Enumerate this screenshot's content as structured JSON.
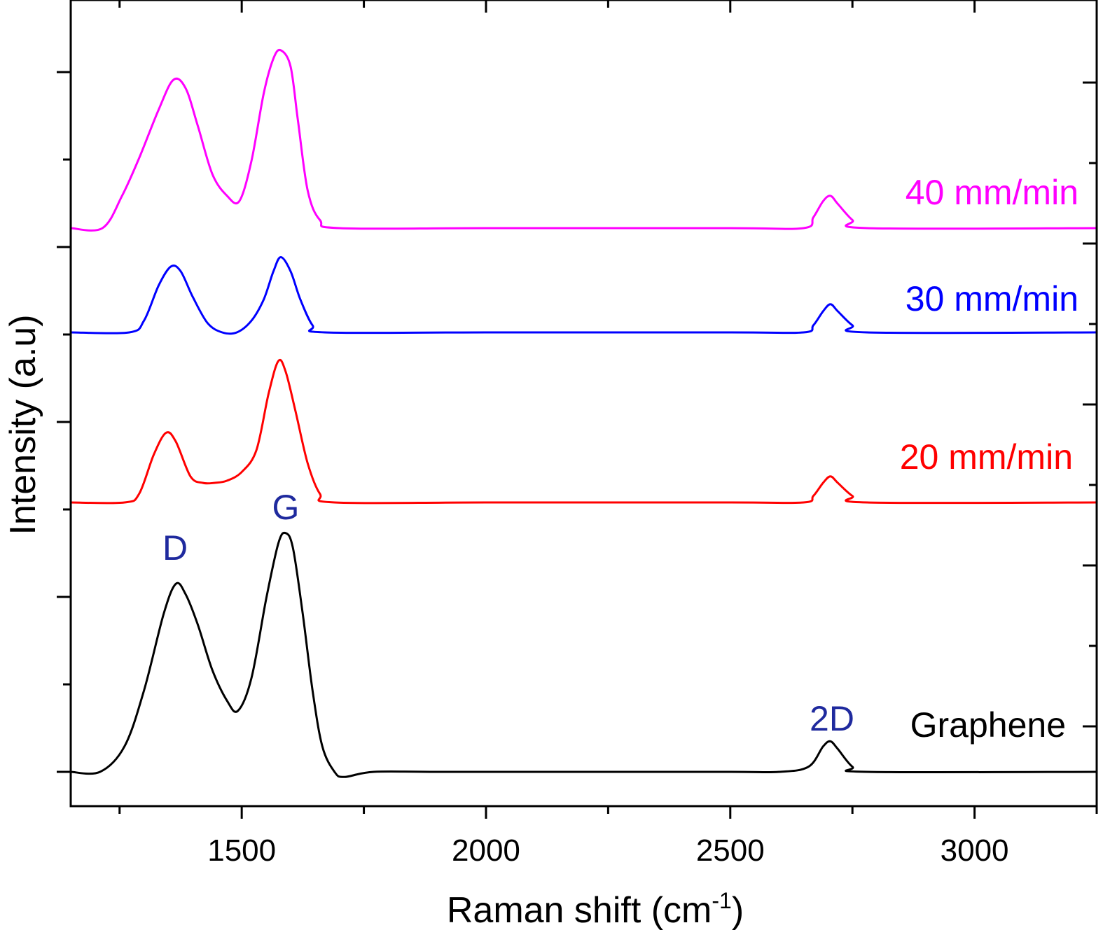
{
  "chart_data": {
    "type": "line",
    "title": "",
    "xlabel": "Raman shift (cm",
    "xlabel_superscript": "-1",
    "xlabel_suffix": ")",
    "ylabel": "Intensity (a.u)",
    "xlim": [
      1150,
      3250
    ],
    "x_ticks": [
      1500,
      2000,
      2500,
      3000
    ],
    "x_tick_labels": [
      "1500",
      "2000",
      "2500",
      "3000"
    ],
    "y_ticks_shown_without_labels": true,
    "grid": false,
    "series": [
      {
        "name": "Graphene",
        "color": "#000000",
        "points": [
          [
            1150,
            0.0
          ],
          [
            1210,
            0.0
          ],
          [
            1260,
            0.1
          ],
          [
            1300,
            0.32
          ],
          [
            1340,
            0.62
          ],
          [
            1365,
            0.74
          ],
          [
            1385,
            0.7
          ],
          [
            1410,
            0.58
          ],
          [
            1440,
            0.4
          ],
          [
            1470,
            0.28
          ],
          [
            1492,
            0.24
          ],
          [
            1520,
            0.37
          ],
          [
            1550,
            0.68
          ],
          [
            1575,
            0.9
          ],
          [
            1590,
            0.94
          ],
          [
            1605,
            0.88
          ],
          [
            1625,
            0.62
          ],
          [
            1645,
            0.32
          ],
          [
            1665,
            0.1
          ],
          [
            1690,
            0.0
          ],
          [
            1710,
            -0.02
          ],
          [
            1770,
            0.0
          ],
          [
            1900,
            0.0
          ],
          [
            2200,
            0.0
          ],
          [
            2500,
            0.0
          ],
          [
            2600,
            0.0
          ],
          [
            2660,
            0.02
          ],
          [
            2690,
            0.1
          ],
          [
            2705,
            0.12
          ],
          [
            2720,
            0.09
          ],
          [
            2750,
            0.02
          ],
          [
            2780,
            0.0
          ],
          [
            3250,
            0.0
          ]
        ]
      },
      {
        "name": "20 mm/min",
        "color": "#ff0000",
        "points": [
          [
            1150,
            0.0
          ],
          [
            1260,
            0.0
          ],
          [
            1290,
            0.04
          ],
          [
            1320,
            0.22
          ],
          [
            1345,
            0.32
          ],
          [
            1365,
            0.28
          ],
          [
            1395,
            0.12
          ],
          [
            1420,
            0.09
          ],
          [
            1445,
            0.09
          ],
          [
            1470,
            0.1
          ],
          [
            1500,
            0.14
          ],
          [
            1530,
            0.24
          ],
          [
            1555,
            0.5
          ],
          [
            1575,
            0.65
          ],
          [
            1590,
            0.6
          ],
          [
            1610,
            0.42
          ],
          [
            1635,
            0.18
          ],
          [
            1660,
            0.04
          ],
          [
            1690,
            0.0
          ],
          [
            2000,
            0.0
          ],
          [
            2500,
            0.0
          ],
          [
            2650,
            0.0
          ],
          [
            2670,
            0.03
          ],
          [
            2690,
            0.09
          ],
          [
            2705,
            0.12
          ],
          [
            2720,
            0.09
          ],
          [
            2750,
            0.03
          ],
          [
            2780,
            0.0
          ],
          [
            3250,
            0.0
          ]
        ]
      },
      {
        "name": "30 mm/min",
        "color": "#0000ff",
        "points": [
          [
            1150,
            0.0
          ],
          [
            1270,
            0.0
          ],
          [
            1300,
            0.05
          ],
          [
            1330,
            0.2
          ],
          [
            1355,
            0.28
          ],
          [
            1375,
            0.26
          ],
          [
            1400,
            0.15
          ],
          [
            1430,
            0.04
          ],
          [
            1460,
            0.0
          ],
          [
            1490,
            0.0
          ],
          [
            1520,
            0.05
          ],
          [
            1545,
            0.14
          ],
          [
            1565,
            0.26
          ],
          [
            1580,
            0.32
          ],
          [
            1600,
            0.26
          ],
          [
            1620,
            0.14
          ],
          [
            1645,
            0.03
          ],
          [
            1670,
            0.0
          ],
          [
            2000,
            0.0
          ],
          [
            2500,
            0.0
          ],
          [
            2650,
            0.0
          ],
          [
            2670,
            0.03
          ],
          [
            2690,
            0.09
          ],
          [
            2705,
            0.12
          ],
          [
            2720,
            0.09
          ],
          [
            2750,
            0.03
          ],
          [
            2780,
            0.0
          ],
          [
            3250,
            0.0
          ]
        ]
      },
      {
        "name": "40 mm/min",
        "color": "#ff00ff",
        "points": [
          [
            1150,
            0.0
          ],
          [
            1215,
            0.0
          ],
          [
            1255,
            0.12
          ],
          [
            1290,
            0.26
          ],
          [
            1330,
            0.44
          ],
          [
            1360,
            0.55
          ],
          [
            1385,
            0.52
          ],
          [
            1410,
            0.38
          ],
          [
            1440,
            0.2
          ],
          [
            1470,
            0.12
          ],
          [
            1495,
            0.1
          ],
          [
            1520,
            0.25
          ],
          [
            1545,
            0.5
          ],
          [
            1565,
            0.63
          ],
          [
            1580,
            0.66
          ],
          [
            1600,
            0.6
          ],
          [
            1615,
            0.4
          ],
          [
            1635,
            0.14
          ],
          [
            1660,
            0.03
          ],
          [
            1700,
            0.0
          ],
          [
            2000,
            0.0
          ],
          [
            2500,
            0.0
          ],
          [
            2650,
            0.0
          ],
          [
            2670,
            0.04
          ],
          [
            2690,
            0.1
          ],
          [
            2705,
            0.12
          ],
          [
            2720,
            0.09
          ],
          [
            2750,
            0.03
          ],
          [
            2780,
            0.0
          ],
          [
            3250,
            0.0
          ]
        ]
      }
    ],
    "series_labels": [
      "Graphene",
      "20 mm/min",
      "30 mm/min",
      "40 mm/min"
    ],
    "peak_labels": [
      {
        "text": "D",
        "x": 1365
      },
      {
        "text": "G",
        "x": 1590
      },
      {
        "text": "2D",
        "x": 2705
      }
    ],
    "peak_label_color": "#1f2a9e"
  }
}
